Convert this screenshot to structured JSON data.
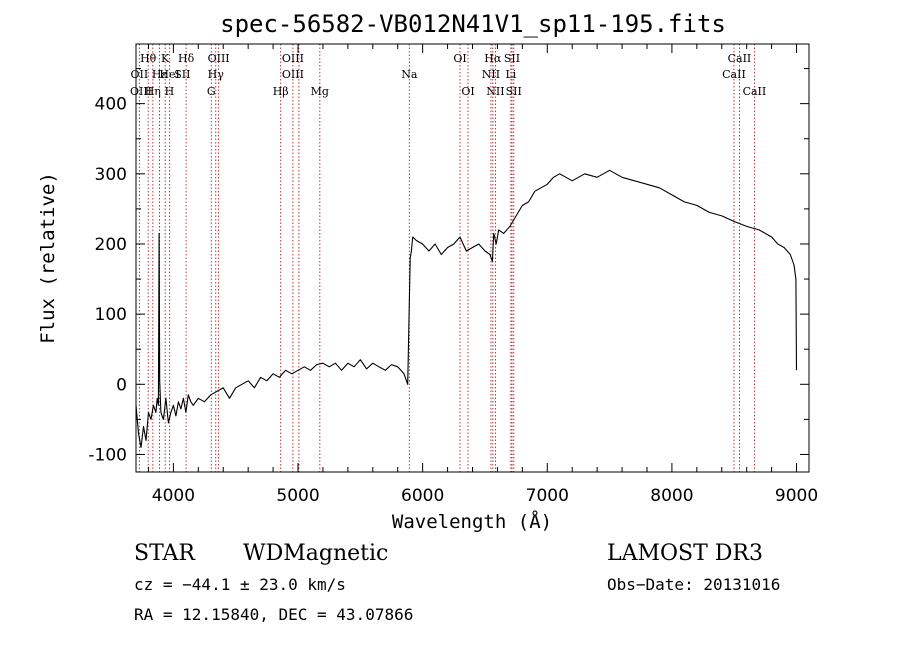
{
  "chart_data": {
    "type": "line",
    "title": "spec-56582-VB012N41V1_sp11-195.fits",
    "xlabel": "Wavelength (Å)",
    "ylabel": "Flux (relative)",
    "xlim": [
      3700,
      9100
    ],
    "ylim": [
      -125,
      485
    ],
    "xticks": [
      4000,
      5000,
      6000,
      7000,
      8000,
      9000
    ],
    "yticks": [
      -100,
      0,
      100,
      200,
      300,
      400
    ],
    "series": [
      {
        "name": "flux",
        "x": [
          3700,
          3720,
          3740,
          3760,
          3780,
          3800,
          3820,
          3840,
          3860,
          3870,
          3880,
          3885,
          3890,
          3900,
          3920,
          3940,
          3960,
          3980,
          4000,
          4020,
          4040,
          4060,
          4080,
          4100,
          4120,
          4140,
          4160,
          4200,
          4250,
          4300,
          4350,
          4400,
          4450,
          4500,
          4550,
          4600,
          4650,
          4700,
          4750,
          4800,
          4850,
          4900,
          4950,
          5000,
          5050,
          5100,
          5150,
          5200,
          5250,
          5300,
          5350,
          5400,
          5450,
          5500,
          5550,
          5600,
          5650,
          5700,
          5750,
          5800,
          5850,
          5880,
          5900,
          5910,
          5920,
          5950,
          6000,
          6050,
          6100,
          6150,
          6200,
          6250,
          6300,
          6350,
          6400,
          6450,
          6500,
          6540,
          6560,
          6570,
          6590,
          6610,
          6650,
          6700,
          6750,
          6800,
          6850,
          6900,
          6950,
          7000,
          7050,
          7100,
          7150,
          7200,
          7300,
          7400,
          7500,
          7600,
          7700,
          7800,
          7900,
          8000,
          8100,
          8200,
          8300,
          8400,
          8500,
          8600,
          8700,
          8800,
          8850,
          8900,
          8950,
          8980,
          8995,
          9000
        ],
        "y": [
          -30,
          -70,
          -90,
          -60,
          -80,
          -40,
          -50,
          -30,
          -40,
          -20,
          -30,
          215,
          5,
          -40,
          -50,
          -20,
          -55,
          -40,
          -30,
          -45,
          -25,
          -35,
          -20,
          -40,
          -15,
          -25,
          -30,
          -20,
          -25,
          -15,
          -10,
          -5,
          -20,
          -5,
          0,
          5,
          -5,
          10,
          5,
          15,
          10,
          20,
          15,
          20,
          25,
          20,
          28,
          30,
          25,
          30,
          20,
          30,
          25,
          35,
          22,
          30,
          25,
          20,
          28,
          25,
          15,
          0,
          180,
          190,
          210,
          205,
          200,
          190,
          200,
          185,
          195,
          200,
          210,
          190,
          195,
          200,
          190,
          185,
          175,
          215,
          200,
          220,
          215,
          225,
          240,
          255,
          260,
          275,
          280,
          285,
          295,
          300,
          295,
          290,
          300,
          295,
          305,
          295,
          290,
          285,
          280,
          270,
          260,
          255,
          245,
          240,
          232,
          225,
          220,
          210,
          200,
          195,
          185,
          170,
          150,
          20
        ],
        "color": "#000000"
      }
    ],
    "lines": {
      "labels_row1": [
        {
          "text": "Hθ",
          "wl": 3798
        },
        {
          "text": "K",
          "wl": 3934
        },
        {
          "text": "Hδ",
          "wl": 4102
        },
        {
          "text": "OIII",
          "wl": 4363
        },
        {
          "text": "OIII",
          "wl": 4959
        },
        {
          "text": "OI",
          "wl": 6300
        },
        {
          "text": "Hα",
          "wl": 6563
        },
        {
          "text": "SII",
          "wl": 6717
        },
        {
          "text": "CaII",
          "wl": 8542
        }
      ],
      "labels_row2": [
        {
          "text": "OII",
          "wl": 3727
        },
        {
          "text": "Hε",
          "wl": 3889
        },
        {
          "text": "HeI",
          "wl": 3970
        },
        {
          "text": "SII",
          "wl": 4072
        },
        {
          "text": "Hγ",
          "wl": 4340
        },
        {
          "text": "OIII",
          "wl": 4959
        },
        {
          "text": "Na",
          "wl": 5893
        },
        {
          "text": "NII",
          "wl": 6548
        },
        {
          "text": "Li",
          "wl": 6708
        },
        {
          "text": "CaII",
          "wl": 8498
        }
      ],
      "labels_row3": [
        {
          "text": "OIII",
          "wl": 3740
        },
        {
          "text": "Hη",
          "wl": 3835
        },
        {
          "text": "H",
          "wl": 3968
        },
        {
          "text": "G",
          "wl": 4304
        },
        {
          "text": "Hβ",
          "wl": 4861
        },
        {
          "text": "Mg",
          "wl": 5175
        },
        {
          "text": "OI",
          "wl": 6364
        },
        {
          "text": "NII",
          "wl": 6584
        },
        {
          "text": "SII",
          "wl": 6731
        },
        {
          "text": "CaII",
          "wl": 8662
        }
      ],
      "marker_wavelengths": [
        3727,
        3798,
        3835,
        3889,
        3934,
        3970,
        4102,
        4304,
        4340,
        4363,
        4861,
        4959,
        5007,
        5175,
        5893,
        6300,
        6364,
        6548,
        6563,
        6584,
        6708,
        6717,
        6731,
        8498,
        8542,
        8662
      ],
      "marker_color": "#b22222"
    }
  },
  "footer": {
    "class_label": "STAR",
    "subclass_label": "WDMagnetic",
    "survey_label": "LAMOST DR3",
    "cz_text": "cz = −44.1 ± 23.0 km/s",
    "obs_date_text": "Obs−Date: 20131016",
    "coords_text": "RA =  12.15840, DEC =  43.07866"
  }
}
